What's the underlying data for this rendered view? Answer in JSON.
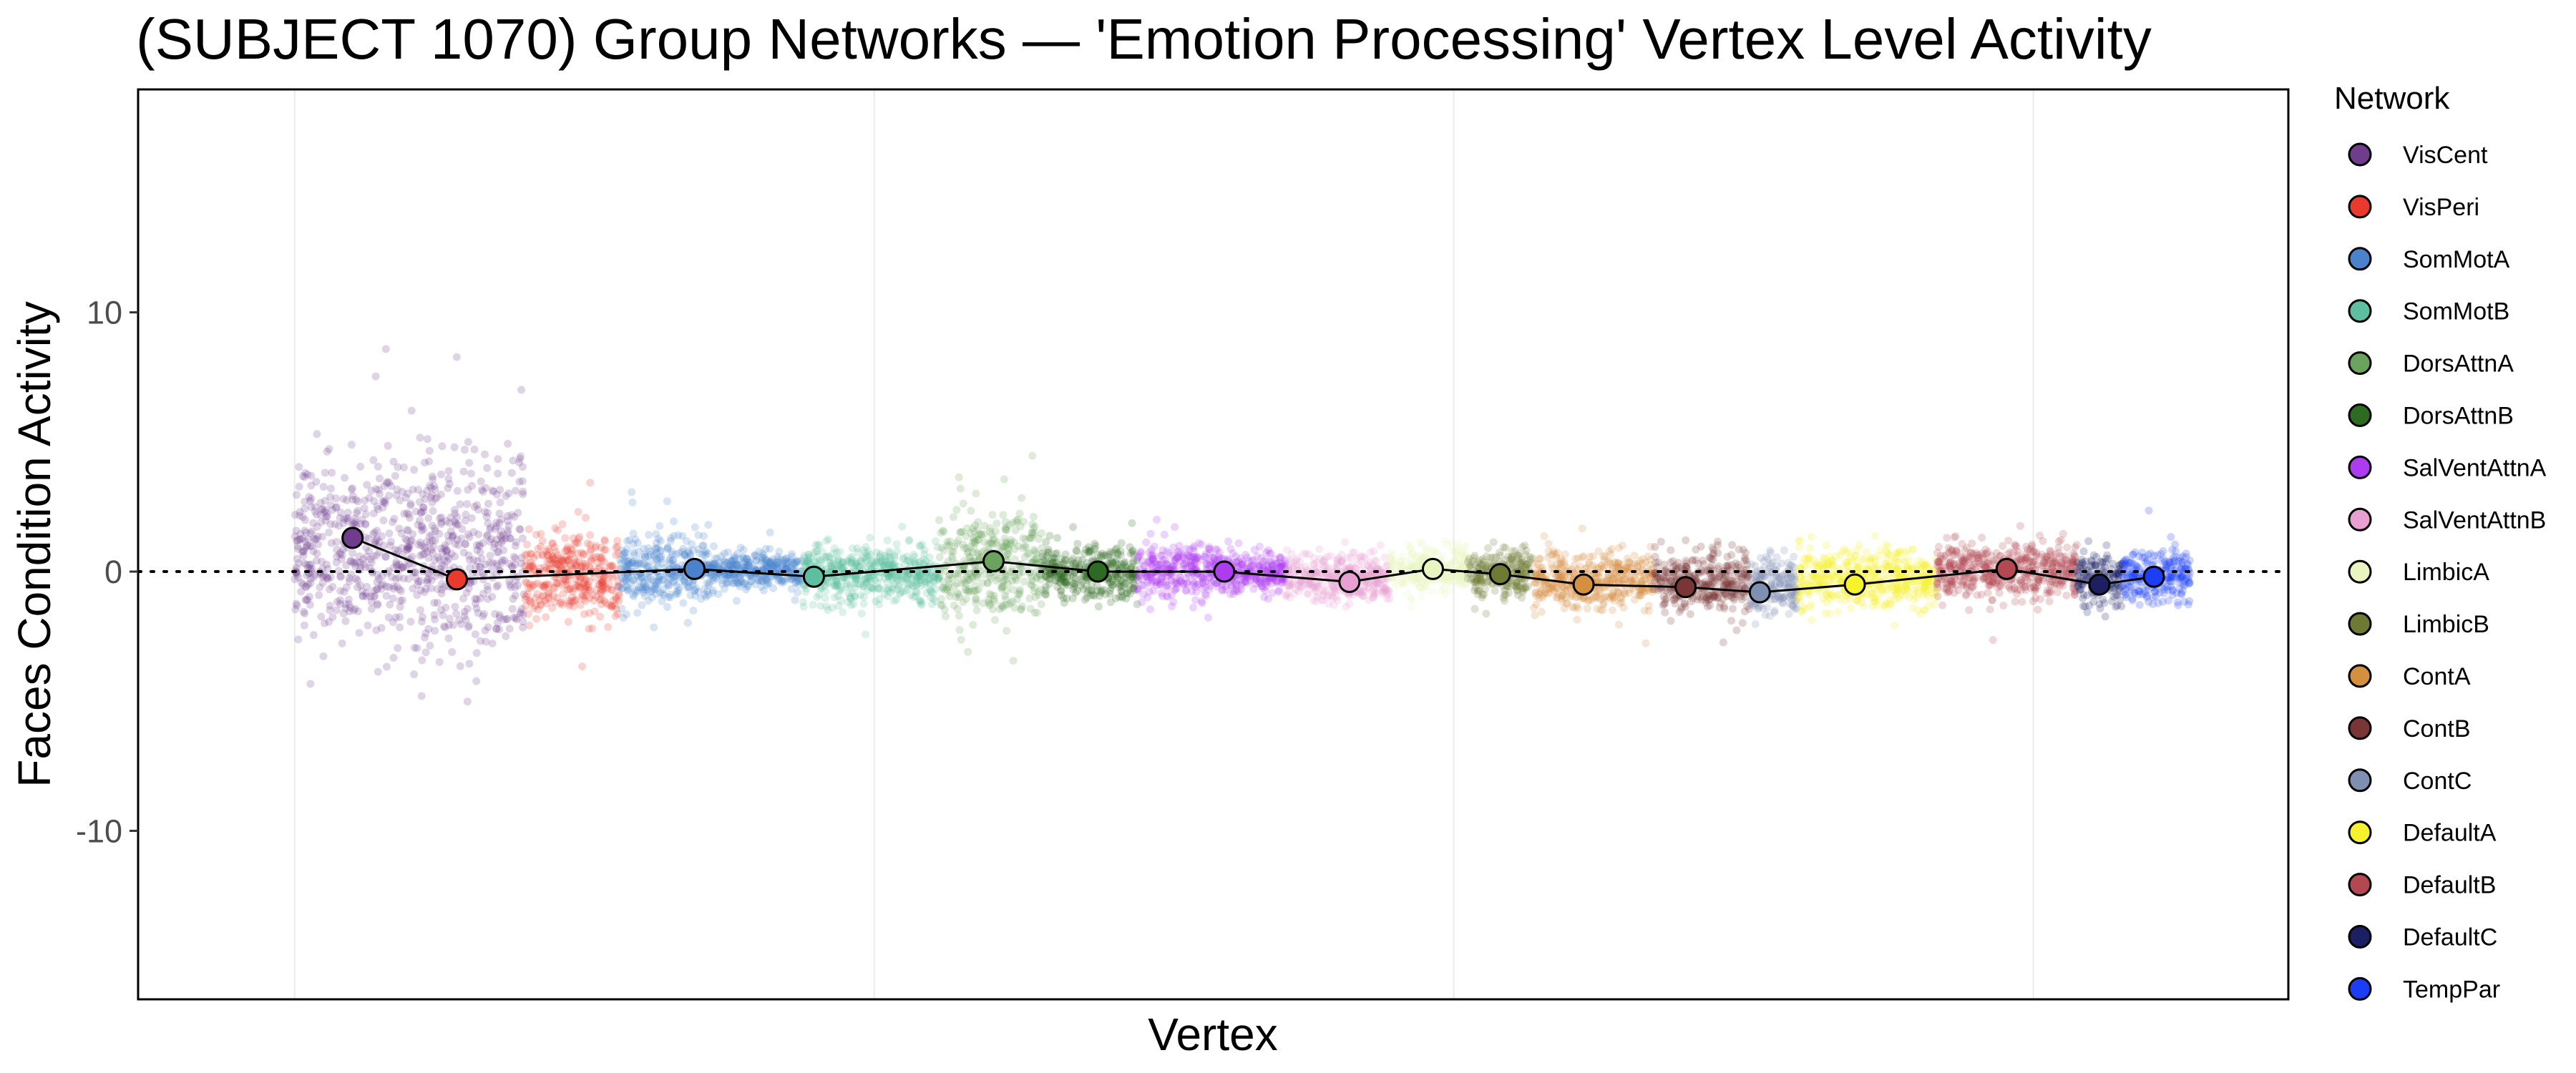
{
  "chart_data": {
    "type": "scatter",
    "title": "(SUBJECT 1070) Group Networks — 'Emotion Processing' Vertex Level Activity",
    "xlabel": "Vertex",
    "ylabel": "Faces Condition Activity",
    "ylim": [
      -16.5,
      18.6
    ],
    "yticks": [
      -10,
      0,
      10
    ],
    "reference_line_y": 0,
    "grid": "vertical-only",
    "legend": {
      "title": "Network",
      "placement": "right"
    },
    "series": [
      {
        "name": "VisCent",
        "color": "#6f3d8c",
        "segments": [
          {
            "range": [
              0,
              99
            ],
            "spread": 3.0
          },
          {
            "range": [
              99,
              198
            ],
            "spread": 3.4
          }
        ],
        "mean": 1.3
      },
      {
        "name": "VisPeri",
        "color": "#ea3a2c",
        "segments": [
          {
            "range": [
              198,
              280
            ],
            "spread": 1.4
          }
        ],
        "mean": -0.3
      },
      {
        "name": "SomMotA",
        "color": "#4a82cc",
        "segments": [
          {
            "range": [
              280,
              357
            ],
            "spread": 1.2
          },
          {
            "range": [
              357,
              438
            ],
            "spread": 0.6
          }
        ],
        "mean": 0.1
      },
      {
        "name": "SomMotB",
        "color": "#5dbf9f",
        "segments": [
          {
            "range": [
              438,
              556
            ],
            "spread": 1.0
          }
        ],
        "mean": -0.2
      },
      {
        "name": "DorsAttnA",
        "color": "#6aa35b",
        "segments": [
          {
            "range": [
              556,
              645
            ],
            "spread": 1.8
          }
        ],
        "mean": 0.4
      },
      {
        "name": "DorsAttnB",
        "color": "#2d6a22",
        "segments": [
          {
            "range": [
              645,
              727
            ],
            "spread": 0.9
          }
        ],
        "mean": 0.0
      },
      {
        "name": "SalVentAttnA",
        "color": "#ad3bf0",
        "segments": [
          {
            "range": [
              727,
              790
            ],
            "spread": 1.0
          },
          {
            "range": [
              790,
              855
            ],
            "spread": 0.7
          }
        ],
        "mean": 0.0
      },
      {
        "name": "SalVentAttnB",
        "color": "#e8a0d2",
        "segments": [
          {
            "range": [
              855,
              945
            ],
            "spread": 0.8
          }
        ],
        "mean": -0.4
      },
      {
        "name": "LimbicA",
        "color": "#e9f5c0",
        "segments": [
          {
            "range": [
              945,
              1012
            ],
            "spread": 0.8
          }
        ],
        "mean": 0.1
      },
      {
        "name": "LimbicB",
        "color": "#6e7a33",
        "segments": [
          {
            "range": [
              1012,
              1068
            ],
            "spread": 0.8
          }
        ],
        "mean": -0.1
      },
      {
        "name": "ContA",
        "color": "#d48f3f",
        "segments": [
          {
            "range": [
              1068,
              1128
            ],
            "spread": 1.0
          },
          {
            "range": [
              1128,
              1172
            ],
            "spread": 0.9
          }
        ],
        "mean": -0.5
      },
      {
        "name": "ContB",
        "color": "#7a3536",
        "segments": [
          {
            "range": [
              1172,
              1255
            ],
            "spread": 1.0
          }
        ],
        "mean": -0.6
      },
      {
        "name": "ContC",
        "color": "#7f8fb2",
        "segments": [
          {
            "range": [
              1255,
              1297
            ],
            "spread": 1.0
          }
        ],
        "mean": -0.8
      },
      {
        "name": "DefaultA",
        "color": "#f7f22e",
        "segments": [
          {
            "range": [
              1297,
              1417
            ],
            "spread": 1.0
          }
        ],
        "mean": -0.5
      },
      {
        "name": "DefaultB",
        "color": "#b24851",
        "segments": [
          {
            "range": [
              1417,
              1538
            ],
            "spread": 1.0
          }
        ],
        "mean": 0.1
      },
      {
        "name": "DefaultC",
        "color": "#1d1f63",
        "segments": [
          {
            "range": [
              1538,
              1577
            ],
            "spread": 0.9
          }
        ],
        "mean": -0.5
      },
      {
        "name": "TempPar",
        "color": "#1b3ef5",
        "segments": [
          {
            "range": [
              1577,
              1635
            ],
            "spread": 0.9
          }
        ],
        "mean": -0.2
      }
    ],
    "mean_line": [
      {
        "x": 50,
        "y": 1.3
      },
      {
        "x": 140,
        "y": -0.3
      },
      {
        "x": 345,
        "y": 0.1
      },
      {
        "x": 448,
        "y": -0.2
      },
      {
        "x": 603,
        "y": 0.4
      },
      {
        "x": 693,
        "y": 0.0
      },
      {
        "x": 802,
        "y": 0.0
      },
      {
        "x": 910,
        "y": -0.4
      },
      {
        "x": 982,
        "y": 0.1
      },
      {
        "x": 1040,
        "y": -0.1
      },
      {
        "x": 1112,
        "y": -0.5
      },
      {
        "x": 1200,
        "y": -0.6
      },
      {
        "x": 1264,
        "y": -0.8
      },
      {
        "x": 1346,
        "y": -0.5
      },
      {
        "x": 1477,
        "y": 0.1
      },
      {
        "x": 1557,
        "y": -0.5
      },
      {
        "x": 1604,
        "y": -0.2
      }
    ]
  }
}
